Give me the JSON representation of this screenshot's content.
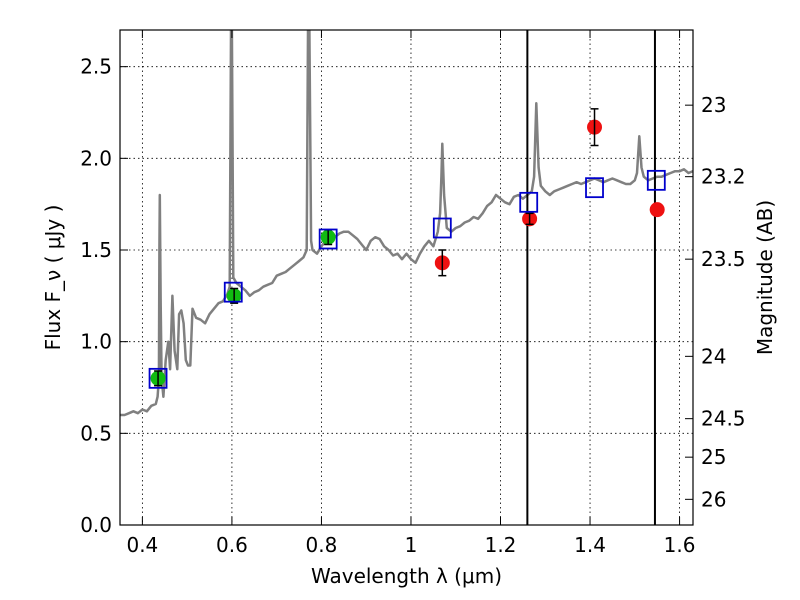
{
  "chart_data": {
    "type": "scatter",
    "title": "",
    "xlabel": "Wavelength  λ (μm)",
    "ylabel": "Flux  F_ν  ( μJy )",
    "ylabel_right": "Magnitude (AB)",
    "xlim": [
      0.35,
      1.63
    ],
    "ylim": [
      0.0,
      2.7
    ],
    "grid": true,
    "x_ticks": [
      {
        "value": 0.4,
        "label": "0.4"
      },
      {
        "value": 0.6,
        "label": "0.6"
      },
      {
        "value": 0.8,
        "label": "0.8"
      },
      {
        "value": 1.0,
        "label": "1"
      },
      {
        "value": 1.2,
        "label": "1.2"
      },
      {
        "value": 1.4,
        "label": "1.4"
      },
      {
        "value": 1.6,
        "label": "1.6"
      }
    ],
    "y_ticks": [
      {
        "value": 0.0,
        "label": "0.0"
      },
      {
        "value": 0.5,
        "label": "0.5"
      },
      {
        "value": 1.0,
        "label": "1.0"
      },
      {
        "value": 1.5,
        "label": "1.5"
      },
      {
        "value": 2.0,
        "label": "2.0"
      },
      {
        "value": 2.5,
        "label": "2.5"
      }
    ],
    "right_ticks": [
      {
        "flux": 2.29,
        "label": "23"
      },
      {
        "flux": 1.9,
        "label": "23.2"
      },
      {
        "flux": 1.45,
        "label": "23.5"
      },
      {
        "flux": 0.92,
        "label": "24"
      },
      {
        "flux": 0.58,
        "label": "24.5"
      },
      {
        "flux": 0.37,
        "label": "25"
      },
      {
        "flux": 0.14,
        "label": "26"
      }
    ],
    "vlines": [
      1.26,
      1.545
    ],
    "colors": {
      "model": "#808080",
      "green_points": "#11bb11",
      "red_points": "#ee1111",
      "squares": "#0000cc",
      "vlines": "#000000"
    },
    "series": [
      {
        "kind": "line",
        "points": [
          [
            0.35,
            0.6
          ],
          [
            0.36,
            0.6
          ],
          [
            0.37,
            0.61
          ],
          [
            0.38,
            0.62
          ],
          [
            0.39,
            0.61
          ],
          [
            0.4,
            0.63
          ],
          [
            0.41,
            0.62
          ],
          [
            0.42,
            0.65
          ],
          [
            0.43,
            0.66
          ],
          [
            0.434,
            0.7
          ],
          [
            0.437,
            0.8
          ],
          [
            0.438,
            1.5
          ],
          [
            0.439,
            1.8
          ],
          [
            0.441,
            1.2
          ],
          [
            0.443,
            0.8
          ],
          [
            0.447,
            0.7
          ],
          [
            0.452,
            0.9
          ],
          [
            0.458,
            1.0
          ],
          [
            0.462,
            0.85
          ],
          [
            0.467,
            1.25
          ],
          [
            0.472,
            0.95
          ],
          [
            0.478,
            0.85
          ],
          [
            0.482,
            1.15
          ],
          [
            0.487,
            1.17
          ],
          [
            0.492,
            1.1
          ],
          [
            0.497,
            0.9
          ],
          [
            0.502,
            0.87
          ],
          [
            0.507,
            0.87
          ],
          [
            0.512,
            1.18
          ],
          [
            0.52,
            1.13
          ],
          [
            0.53,
            1.12
          ],
          [
            0.54,
            1.1
          ],
          [
            0.55,
            1.15
          ],
          [
            0.56,
            1.18
          ],
          [
            0.57,
            1.21
          ],
          [
            0.58,
            1.22
          ],
          [
            0.59,
            1.26
          ],
          [
            0.595,
            1.3
          ],
          [
            0.598,
            2.7
          ],
          [
            0.6,
            2.7
          ],
          [
            0.603,
            1.35
          ],
          [
            0.61,
            1.32
          ],
          [
            0.62,
            1.3
          ],
          [
            0.63,
            1.28
          ],
          [
            0.64,
            1.25
          ],
          [
            0.65,
            1.27
          ],
          [
            0.66,
            1.28
          ],
          [
            0.67,
            1.3
          ],
          [
            0.68,
            1.31
          ],
          [
            0.69,
            1.32
          ],
          [
            0.7,
            1.36
          ],
          [
            0.71,
            1.37
          ],
          [
            0.72,
            1.38
          ],
          [
            0.73,
            1.4
          ],
          [
            0.74,
            1.42
          ],
          [
            0.75,
            1.44
          ],
          [
            0.76,
            1.46
          ],
          [
            0.767,
            1.5
          ],
          [
            0.77,
            2.7
          ],
          [
            0.773,
            2.7
          ],
          [
            0.777,
            1.55
          ],
          [
            0.78,
            1.5
          ],
          [
            0.79,
            1.48
          ],
          [
            0.8,
            1.52
          ],
          [
            0.81,
            1.55
          ],
          [
            0.82,
            1.58
          ],
          [
            0.83,
            1.57
          ],
          [
            0.84,
            1.59
          ],
          [
            0.85,
            1.6
          ],
          [
            0.86,
            1.6
          ],
          [
            0.87,
            1.58
          ],
          [
            0.88,
            1.56
          ],
          [
            0.89,
            1.53
          ],
          [
            0.9,
            1.5
          ],
          [
            0.91,
            1.55
          ],
          [
            0.92,
            1.57
          ],
          [
            0.93,
            1.56
          ],
          [
            0.94,
            1.52
          ],
          [
            0.95,
            1.5
          ],
          [
            0.96,
            1.47
          ],
          [
            0.97,
            1.48
          ],
          [
            0.98,
            1.45
          ],
          [
            0.99,
            1.48
          ],
          [
            1.0,
            1.45
          ],
          [
            1.01,
            1.43
          ],
          [
            1.02,
            1.48
          ],
          [
            1.03,
            1.52
          ],
          [
            1.04,
            1.55
          ],
          [
            1.05,
            1.52
          ],
          [
            1.06,
            1.6
          ],
          [
            1.065,
            1.7
          ],
          [
            1.068,
            1.9
          ],
          [
            1.07,
            2.08
          ],
          [
            1.074,
            1.8
          ],
          [
            1.08,
            1.62
          ],
          [
            1.09,
            1.6
          ],
          [
            1.1,
            1.62
          ],
          [
            1.11,
            1.63
          ],
          [
            1.12,
            1.65
          ],
          [
            1.13,
            1.66
          ],
          [
            1.14,
            1.68
          ],
          [
            1.15,
            1.67
          ],
          [
            1.16,
            1.7
          ],
          [
            1.17,
            1.74
          ],
          [
            1.18,
            1.76
          ],
          [
            1.19,
            1.8
          ],
          [
            1.2,
            1.78
          ],
          [
            1.21,
            1.76
          ],
          [
            1.22,
            1.75
          ],
          [
            1.23,
            1.79
          ],
          [
            1.24,
            1.8
          ],
          [
            1.25,
            1.78
          ],
          [
            1.26,
            1.8
          ],
          [
            1.27,
            1.82
          ],
          [
            1.275,
            1.9
          ],
          [
            1.28,
            2.3
          ],
          [
            1.285,
            1.95
          ],
          [
            1.29,
            1.85
          ],
          [
            1.3,
            1.82
          ],
          [
            1.31,
            1.8
          ],
          [
            1.32,
            1.82
          ],
          [
            1.33,
            1.83
          ],
          [
            1.34,
            1.84
          ],
          [
            1.35,
            1.85
          ],
          [
            1.36,
            1.86
          ],
          [
            1.37,
            1.87
          ],
          [
            1.38,
            1.86
          ],
          [
            1.39,
            1.87
          ],
          [
            1.4,
            1.88
          ],
          [
            1.41,
            1.89
          ],
          [
            1.42,
            1.88
          ],
          [
            1.43,
            1.87
          ],
          [
            1.44,
            1.88
          ],
          [
            1.45,
            1.89
          ],
          [
            1.46,
            1.88
          ],
          [
            1.47,
            1.87
          ],
          [
            1.48,
            1.86
          ],
          [
            1.49,
            1.86
          ],
          [
            1.5,
            1.88
          ],
          [
            1.505,
            1.92
          ],
          [
            1.51,
            2.12
          ],
          [
            1.515,
            1.95
          ],
          [
            1.52,
            1.9
          ],
          [
            1.53,
            1.88
          ],
          [
            1.54,
            1.89
          ],
          [
            1.55,
            1.9
          ],
          [
            1.56,
            1.9
          ],
          [
            1.57,
            1.91
          ],
          [
            1.58,
            1.92
          ],
          [
            1.59,
            1.93
          ],
          [
            1.6,
            1.93
          ],
          [
            1.61,
            1.94
          ],
          [
            1.62,
            1.92
          ],
          [
            1.63,
            1.93
          ]
        ]
      },
      {
        "kind": "points",
        "marker": "circle",
        "color_key": "green_points",
        "points": [
          {
            "x": 0.435,
            "y": 0.8,
            "err": 0.04
          },
          {
            "x": 0.605,
            "y": 1.25,
            "err": 0.04
          },
          {
            "x": 0.815,
            "y": 1.57,
            "err": 0.04
          }
        ]
      },
      {
        "kind": "points",
        "marker": "circle",
        "color_key": "red_points",
        "points": [
          {
            "x": 1.07,
            "y": 1.43,
            "err": 0.07
          },
          {
            "x": 1.265,
            "y": 1.67,
            "err": 0.03
          },
          {
            "x": 1.41,
            "y": 2.17,
            "err": 0.1
          },
          {
            "x": 1.55,
            "y": 1.72,
            "err": 0.0
          }
        ]
      },
      {
        "kind": "points",
        "marker": "square",
        "color_key": "squares",
        "points": [
          {
            "x": 0.435,
            "y": 0.8
          },
          {
            "x": 0.603,
            "y": 1.27
          },
          {
            "x": 0.815,
            "y": 1.56
          },
          {
            "x": 1.07,
            "y": 1.62
          },
          {
            "x": 1.263,
            "y": 1.76
          },
          {
            "x": 1.41,
            "y": 1.84
          },
          {
            "x": 1.548,
            "y": 1.88
          }
        ]
      }
    ]
  }
}
